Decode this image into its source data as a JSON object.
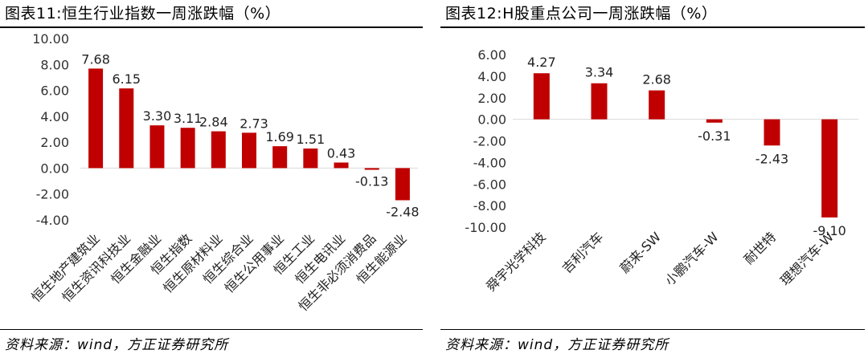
{
  "chart_data": [
    {
      "type": "bar",
      "title": "图表11:恒生行业指数一周涨跌幅（%）",
      "categories": [
        "恒生地产建筑业",
        "恒生资讯科技业",
        "恒生金融业",
        "恒生指数",
        "恒生原材料业",
        "恒生综合业",
        "恒生公用事业",
        "恒生工业",
        "恒生电讯业",
        "恒生非必须消费品",
        "恒生能源业"
      ],
      "values": [
        7.68,
        6.15,
        3.3,
        3.11,
        2.84,
        2.73,
        1.69,
        1.51,
        0.43,
        -0.13,
        -2.48
      ],
      "value_labels": [
        "7.68",
        "6.15",
        "3.30",
        "3.11",
        "2.84",
        "2.73",
        "1.69",
        "1.51",
        "0.43",
        "-0.13",
        "-2.48"
      ],
      "yticks": [
        "10.00",
        "8.00",
        "6.00",
        "4.00",
        "2.00",
        "0.00",
        "-2.00",
        "-4.00"
      ],
      "ylim": [
        -4,
        10
      ],
      "xlabel": "",
      "ylabel": "",
      "grid": false,
      "source": "资料来源：wind，方正证券研究所",
      "color": "#c00000"
    },
    {
      "type": "bar",
      "title": "图表12:H股重点公司一周涨跌幅（%）",
      "categories": [
        "舜宇光学科技",
        "吉利汽车",
        "蔚来-SW",
        "小鹏汽车-W",
        "耐世特",
        "理想汽车-W"
      ],
      "values": [
        4.27,
        3.34,
        2.68,
        -0.31,
        -2.43,
        -9.1
      ],
      "value_labels": [
        "4.27",
        "3.34",
        "2.68",
        "-0.31",
        "-2.43",
        "-9.10"
      ],
      "yticks": [
        "6.00",
        "4.00",
        "2.00",
        "0.00",
        "-2.00",
        "-4.00",
        "-6.00",
        "-8.00",
        "-10.00"
      ],
      "ylim": [
        -10,
        6
      ],
      "xlabel": "",
      "ylabel": "",
      "grid": false,
      "source": "资料来源：wind，方正证券研究所",
      "color": "#c00000"
    }
  ]
}
